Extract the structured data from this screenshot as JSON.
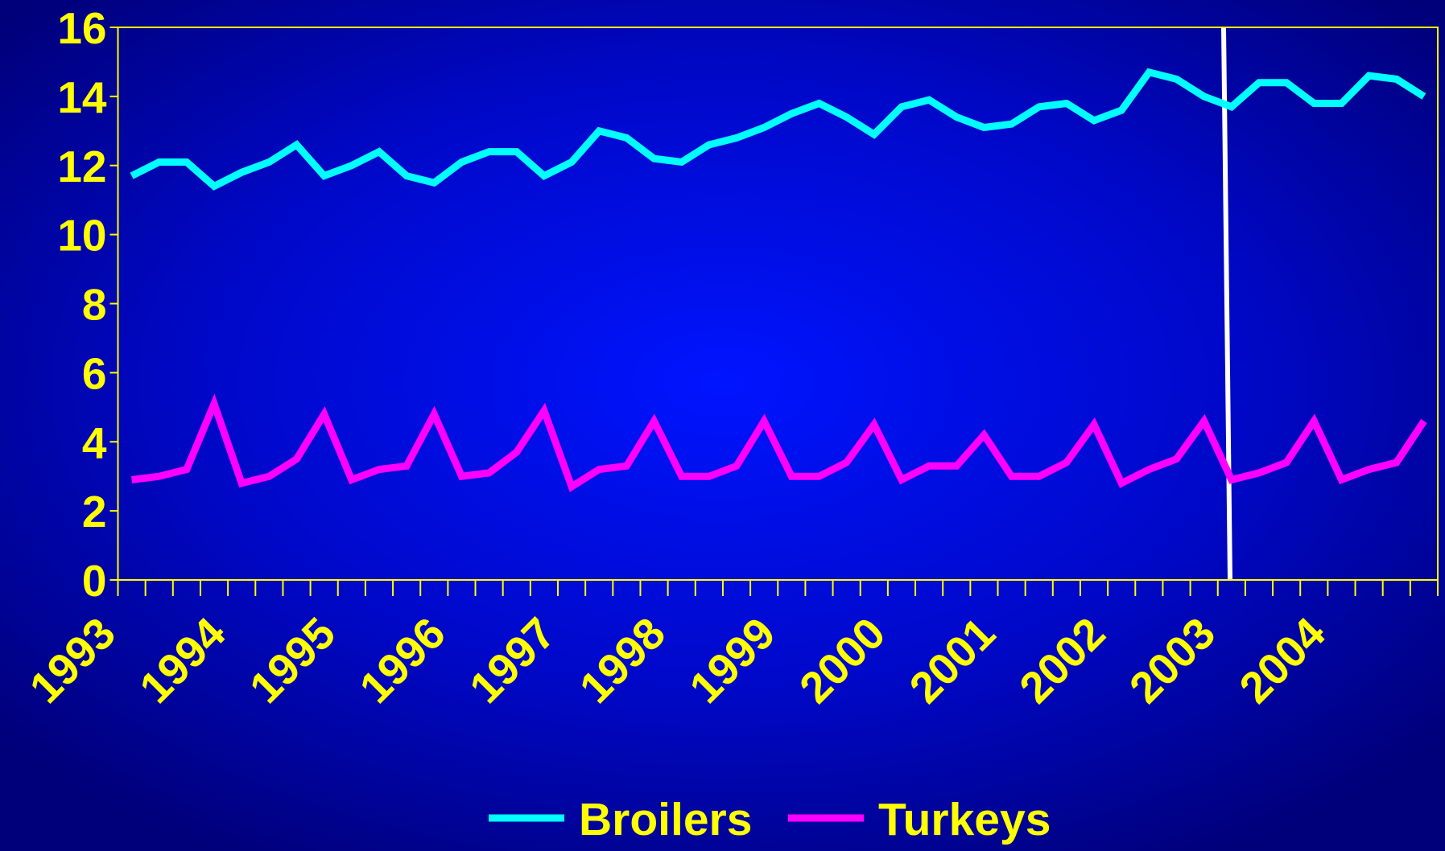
{
  "chart_data": {
    "type": "line",
    "categories": [
      "1993",
      null,
      null,
      null,
      "1994",
      null,
      null,
      null,
      "1995",
      null,
      null,
      null,
      "1996",
      null,
      null,
      null,
      "1997",
      null,
      null,
      null,
      "1998",
      null,
      null,
      null,
      "1999",
      null,
      null,
      null,
      "2000",
      null,
      null,
      null,
      "2001",
      null,
      null,
      null,
      "2002",
      null,
      null,
      null,
      "2003",
      null,
      null,
      null,
      "2004",
      null,
      null,
      null
    ],
    "series": [
      {
        "name": "Broilers",
        "color": "#00ffff",
        "values": [
          11.7,
          12.1,
          12.1,
          11.4,
          11.8,
          12.1,
          12.6,
          11.7,
          12.0,
          12.4,
          11.7,
          11.5,
          12.1,
          12.4,
          12.4,
          11.7,
          12.1,
          13.0,
          12.8,
          12.2,
          12.1,
          12.6,
          12.8,
          13.1,
          13.5,
          13.8,
          13.4,
          12.9,
          13.7,
          13.9,
          13.4,
          13.1,
          13.2,
          13.7,
          13.8,
          13.3,
          13.6,
          14.7,
          14.5,
          14.0,
          13.7,
          14.4,
          14.4,
          13.8,
          13.8,
          14.6,
          14.5,
          14.0
        ]
      },
      {
        "name": "Turkeys",
        "color": "#ff00ff",
        "values": [
          2.9,
          3.0,
          3.2,
          5.1,
          2.8,
          3.0,
          3.5,
          4.8,
          2.9,
          3.2,
          3.3,
          4.8,
          3.0,
          3.1,
          3.7,
          4.9,
          2.7,
          3.2,
          3.3,
          4.6,
          3.0,
          3.0,
          3.3,
          4.6,
          3.0,
          3.0,
          3.4,
          4.5,
          2.9,
          3.3,
          3.3,
          4.2,
          3.0,
          3.0,
          3.4,
          4.5,
          2.8,
          3.2,
          3.5,
          4.6,
          2.9,
          3.1,
          3.4,
          4.6,
          2.9,
          3.2,
          3.4,
          4.6
        ]
      }
    ],
    "ylim": [
      0,
      16
    ],
    "yticks": [
      0,
      2,
      4,
      6,
      8,
      10,
      12,
      14,
      16
    ],
    "grid": false,
    "legend": "bottom"
  }
}
